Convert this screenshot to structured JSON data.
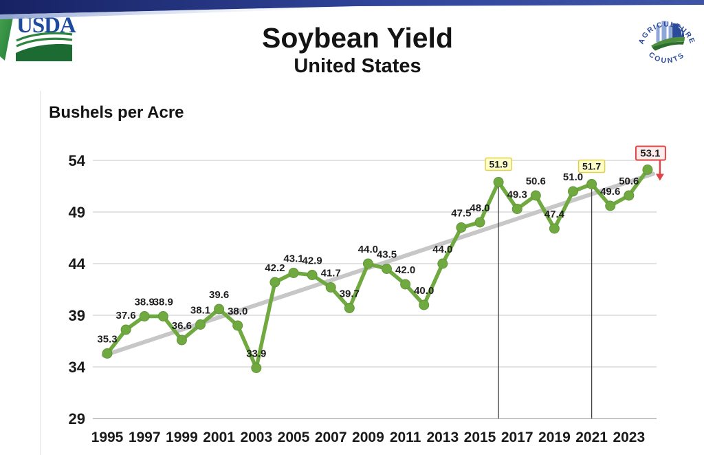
{
  "title": "Soybean Yield",
  "subtitle": "United States",
  "usda_logo": {
    "text": "USDA"
  },
  "nass_logo": {
    "arc_top": "AGRICULTURE",
    "arc_bottom": "COUNTS"
  },
  "chart_data": {
    "type": "line",
    "title": "Soybean Yield - United States",
    "ylabel": "Bushels per Acre",
    "xlabel": "",
    "x": [
      1995,
      1996,
      1997,
      1998,
      1999,
      2000,
      2001,
      2002,
      2003,
      2004,
      2005,
      2006,
      2007,
      2008,
      2009,
      2010,
      2011,
      2012,
      2013,
      2014,
      2015,
      2016,
      2017,
      2018,
      2019,
      2020,
      2021,
      2022,
      2023,
      2024
    ],
    "values": [
      35.3,
      37.6,
      38.9,
      38.9,
      36.6,
      38.1,
      39.6,
      38.0,
      33.9,
      42.2,
      43.1,
      42.9,
      41.7,
      39.7,
      44.0,
      43.5,
      42.0,
      40.0,
      44.0,
      47.5,
      48.0,
      51.9,
      49.3,
      50.6,
      47.4,
      51.0,
      51.7,
      49.6,
      50.6,
      53.1
    ],
    "ylim": [
      29,
      54
    ],
    "xlim": [
      1995,
      2024
    ],
    "yticks": [
      54,
      49,
      44,
      39,
      34,
      29
    ],
    "xticks": [
      1995,
      1997,
      1999,
      2001,
      2003,
      2005,
      2007,
      2009,
      2011,
      2013,
      2015,
      2017,
      2019,
      2021,
      2023
    ],
    "grid": true,
    "legend": "none",
    "series_color": "#6fa93f",
    "marker_edge_color": "#61953a",
    "trend_color": "#c7c7c7",
    "grid_color": "#d9d9d9",
    "axis_line_color": "#b3b3b3",
    "label_color": "#1f1f1f",
    "tick_color": "#1a1a1a",
    "trendline": {
      "start_year": 1994.8,
      "start_value": 35.1,
      "end_year": 2024.3,
      "end_value": 52.7
    },
    "annotations": {
      "yellow_box_years": [
        2016,
        2021
      ],
      "yellow_box_fill": "#ffffcc",
      "yellow_box_border": "#e3cf45",
      "red_box_year": 2024,
      "red_box_fill": "#fdecec",
      "red_box_border": "#e04444",
      "arrow_color": "#e04444",
      "vertical_line_years": [
        2016,
        2021
      ],
      "vertical_line_color": "#3f3f3f"
    }
  }
}
